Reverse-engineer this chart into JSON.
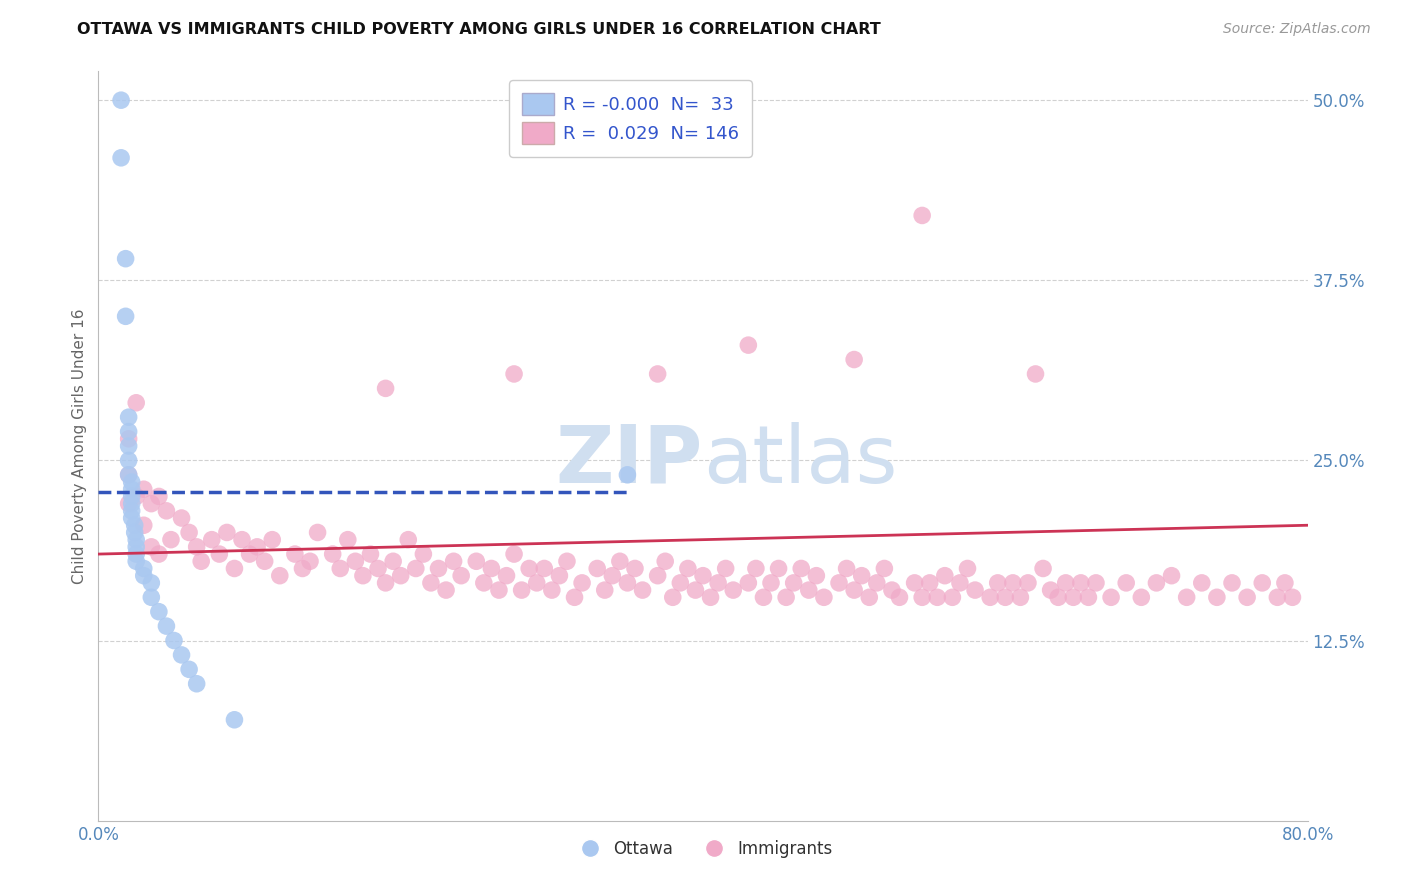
{
  "title": "OTTAWA VS IMMIGRANTS CHILD POVERTY AMONG GIRLS UNDER 16 CORRELATION CHART",
  "source": "Source: ZipAtlas.com",
  "ylabel": "Child Poverty Among Girls Under 16",
  "xlim": [
    0.0,
    0.8
  ],
  "ylim": [
    0.0,
    0.52
  ],
  "yticks": [
    0.125,
    0.25,
    0.375,
    0.5
  ],
  "ytick_labels": [
    "12.5%",
    "25.0%",
    "37.5%",
    "50.0%"
  ],
  "xticks": [
    0.0,
    0.8
  ],
  "xtick_labels": [
    "0.0%",
    "80.0%"
  ],
  "legend_r_ottawa": "-0.000",
  "legend_n_ottawa": "33",
  "legend_r_immigrants": "0.029",
  "legend_n_immigrants": "146",
  "ottawa_color": "#aac8f0",
  "immigrants_color": "#f0aac8",
  "trend_ottawa_color": "#3355bb",
  "trend_immigrants_color": "#cc3355",
  "background_color": "#ffffff",
  "grid_color": "#cccccc",
  "watermark_color": "#d0dff0",
  "ottawa_x": [
    0.015,
    0.015,
    0.018,
    0.018,
    0.02,
    0.02,
    0.02,
    0.02,
    0.02,
    0.022,
    0.022,
    0.022,
    0.022,
    0.022,
    0.022,
    0.024,
    0.024,
    0.025,
    0.025,
    0.025,
    0.025,
    0.03,
    0.03,
    0.035,
    0.035,
    0.04,
    0.045,
    0.05,
    0.055,
    0.06,
    0.065,
    0.09,
    0.35
  ],
  "ottawa_y": [
    0.5,
    0.46,
    0.39,
    0.35,
    0.28,
    0.27,
    0.26,
    0.25,
    0.24,
    0.235,
    0.23,
    0.225,
    0.22,
    0.215,
    0.21,
    0.205,
    0.2,
    0.195,
    0.19,
    0.185,
    0.18,
    0.175,
    0.17,
    0.165,
    0.155,
    0.145,
    0.135,
    0.125,
    0.115,
    0.105,
    0.095,
    0.07,
    0.24
  ],
  "immigrants_x": [
    0.02,
    0.02,
    0.02,
    0.025,
    0.025,
    0.03,
    0.03,
    0.035,
    0.035,
    0.04,
    0.04,
    0.045,
    0.048,
    0.055,
    0.06,
    0.065,
    0.068,
    0.075,
    0.08,
    0.085,
    0.09,
    0.095,
    0.1,
    0.105,
    0.11,
    0.115,
    0.12,
    0.13,
    0.135,
    0.14,
    0.145,
    0.155,
    0.16,
    0.165,
    0.17,
    0.175,
    0.18,
    0.185,
    0.19,
    0.195,
    0.2,
    0.205,
    0.21,
    0.215,
    0.22,
    0.225,
    0.23,
    0.235,
    0.24,
    0.25,
    0.255,
    0.26,
    0.265,
    0.27,
    0.275,
    0.28,
    0.285,
    0.29,
    0.295,
    0.3,
    0.305,
    0.31,
    0.315,
    0.32,
    0.33,
    0.335,
    0.34,
    0.345,
    0.35,
    0.355,
    0.36,
    0.37,
    0.375,
    0.38,
    0.385,
    0.39,
    0.395,
    0.4,
    0.405,
    0.41,
    0.415,
    0.42,
    0.43,
    0.435,
    0.44,
    0.445,
    0.45,
    0.455,
    0.46,
    0.465,
    0.47,
    0.475,
    0.48,
    0.49,
    0.495,
    0.5,
    0.505,
    0.51,
    0.515,
    0.52,
    0.525,
    0.53,
    0.54,
    0.545,
    0.55,
    0.555,
    0.56,
    0.565,
    0.57,
    0.575,
    0.58,
    0.59,
    0.595,
    0.6,
    0.605,
    0.61,
    0.615,
    0.625,
    0.63,
    0.635,
    0.64,
    0.645,
    0.65,
    0.655,
    0.66,
    0.67,
    0.68,
    0.69,
    0.7,
    0.71,
    0.72,
    0.73,
    0.74,
    0.75,
    0.76,
    0.77,
    0.78,
    0.785,
    0.79,
    0.43,
    0.545,
    0.37,
    0.275,
    0.19,
    0.5,
    0.62
  ],
  "immigrants_y": [
    0.265,
    0.24,
    0.22,
    0.29,
    0.225,
    0.23,
    0.205,
    0.22,
    0.19,
    0.225,
    0.185,
    0.215,
    0.195,
    0.21,
    0.2,
    0.19,
    0.18,
    0.195,
    0.185,
    0.2,
    0.175,
    0.195,
    0.185,
    0.19,
    0.18,
    0.195,
    0.17,
    0.185,
    0.175,
    0.18,
    0.2,
    0.185,
    0.175,
    0.195,
    0.18,
    0.17,
    0.185,
    0.175,
    0.165,
    0.18,
    0.17,
    0.195,
    0.175,
    0.185,
    0.165,
    0.175,
    0.16,
    0.18,
    0.17,
    0.18,
    0.165,
    0.175,
    0.16,
    0.17,
    0.185,
    0.16,
    0.175,
    0.165,
    0.175,
    0.16,
    0.17,
    0.18,
    0.155,
    0.165,
    0.175,
    0.16,
    0.17,
    0.18,
    0.165,
    0.175,
    0.16,
    0.17,
    0.18,
    0.155,
    0.165,
    0.175,
    0.16,
    0.17,
    0.155,
    0.165,
    0.175,
    0.16,
    0.165,
    0.175,
    0.155,
    0.165,
    0.175,
    0.155,
    0.165,
    0.175,
    0.16,
    0.17,
    0.155,
    0.165,
    0.175,
    0.16,
    0.17,
    0.155,
    0.165,
    0.175,
    0.16,
    0.155,
    0.165,
    0.155,
    0.165,
    0.155,
    0.17,
    0.155,
    0.165,
    0.175,
    0.16,
    0.155,
    0.165,
    0.155,
    0.165,
    0.155,
    0.165,
    0.175,
    0.16,
    0.155,
    0.165,
    0.155,
    0.165,
    0.155,
    0.165,
    0.155,
    0.165,
    0.155,
    0.165,
    0.17,
    0.155,
    0.165,
    0.155,
    0.165,
    0.155,
    0.165,
    0.155,
    0.165,
    0.155,
    0.33,
    0.42,
    0.31,
    0.31,
    0.3,
    0.32,
    0.31
  ],
  "ottawa_trend_x": [
    0.0,
    0.35
  ],
  "ottawa_trend_y": [
    0.228,
    0.228
  ],
  "immigrants_trend_x": [
    0.0,
    0.8
  ],
  "immigrants_trend_y": [
    0.185,
    0.205
  ]
}
